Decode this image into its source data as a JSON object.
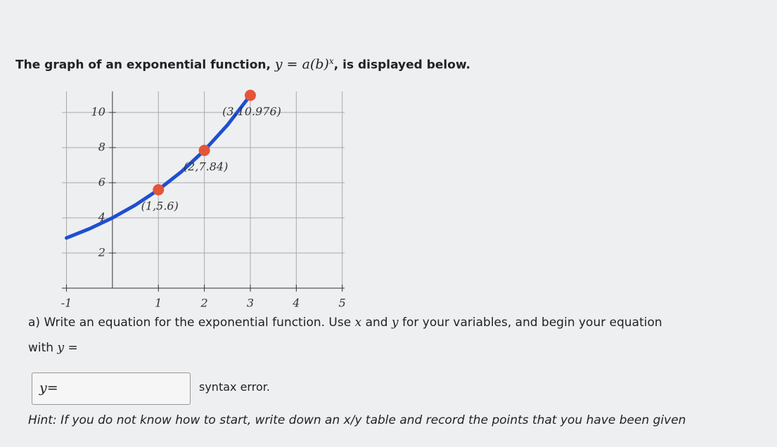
{
  "header": {
    "before": "The graph of an exponential function,",
    "formula": "y = a(b)",
    "exponent": "x",
    "after": ", is displayed below."
  },
  "chart_data": {
    "type": "line",
    "x_axis_ticks_note": null,
    "xlim": [
      -1.1,
      5.05
    ],
    "ylim": [
      0,
      11.2
    ],
    "xticks": [
      -1,
      1,
      2,
      3,
      4,
      5
    ],
    "yticks": [
      2,
      4,
      6,
      8,
      10
    ],
    "grid": true,
    "series": [
      {
        "name": "y = a(b)^x",
        "color": "#1f4fd0",
        "x": [
          -1,
          -0.5,
          0,
          0.5,
          1,
          1.5,
          2,
          2.5,
          3
        ],
        "values": [
          2.857,
          3.381,
          4,
          4.733,
          5.6,
          6.626,
          7.84,
          9.276,
          10.976
        ]
      },
      {
        "name": "points",
        "color": "#e4553a",
        "x": [
          1,
          2,
          3
        ],
        "values": [
          5.6,
          7.84,
          10.976
        ],
        "value_labels": [
          "(1,5.6)",
          "(2,7.84)",
          "(3,10.976)"
        ]
      }
    ]
  },
  "question": {
    "parts": [
      "a) Write an equation for the exponential function. Use ",
      "x",
      " and ",
      "y",
      " for your variables, and begin your equation"
    ],
    "line2": [
      "with ",
      "y ="
    ]
  },
  "answer": {
    "prefix": "y=",
    "feedback": "syntax error."
  },
  "hint": "Hint: If you do not know how to start, write down an x/y table and record the points that you have been given"
}
